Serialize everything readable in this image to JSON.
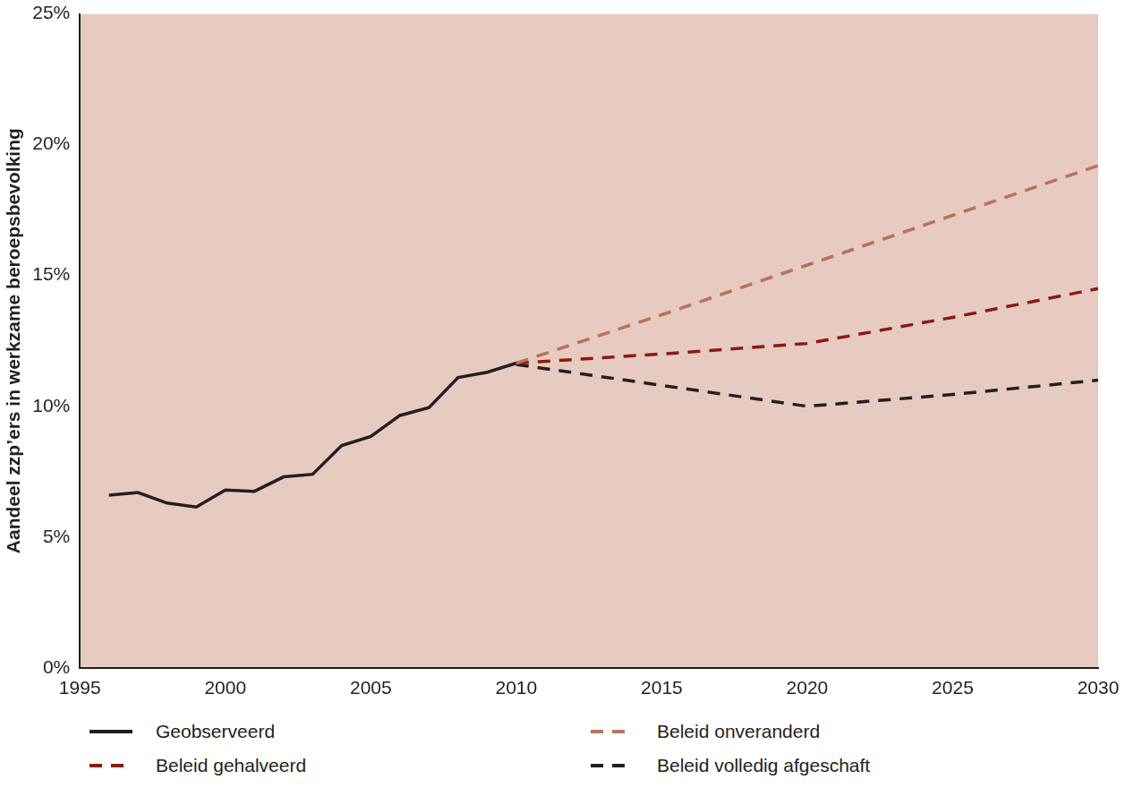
{
  "chart_data": {
    "type": "line",
    "y_label": "Aandeel zzp’ers in werkzame beroepsbevolking",
    "xlim": [
      1995,
      2030
    ],
    "xticks": [
      1995,
      2000,
      2005,
      2010,
      2015,
      2020,
      2025,
      2030
    ],
    "ylim": [
      0,
      25
    ],
    "yticks": [
      {
        "value": 0,
        "label": "0%"
      },
      {
        "value": 5,
        "label": "5%"
      },
      {
        "value": 10,
        "label": "10%"
      },
      {
        "value": 15,
        "label": "15%"
      },
      {
        "value": 20,
        "label": "20%"
      },
      {
        "value": 25,
        "label": "25%"
      }
    ],
    "grid": false,
    "legend": "bottom",
    "series": [
      {
        "name": "Geobserveerd",
        "color": "#231f20",
        "line_style": "solid",
        "x": [
          1996,
          1997,
          1998,
          1999,
          2000,
          2001,
          2002,
          2003,
          2004,
          2005,
          2006,
          2007,
          2008,
          2009,
          2010
        ],
        "values": [
          6.6,
          6.7,
          6.3,
          6.15,
          6.8,
          6.75,
          7.3,
          7.4,
          8.5,
          8.85,
          9.65,
          9.95,
          11.1,
          11.3,
          11.65
        ]
      },
      {
        "name": "Beleid onveranderd",
        "color": "#b87358",
        "line_style": "dashed",
        "x": [
          2010,
          2015,
          2020,
          2025,
          2030
        ],
        "values": [
          11.65,
          13.5,
          15.4,
          17.3,
          19.2
        ]
      },
      {
        "name": "Beleid gehalveerd",
        "color": "#8b1a0e",
        "line_style": "dashed",
        "x": [
          2010,
          2015,
          2020,
          2025,
          2030
        ],
        "values": [
          11.65,
          12.0,
          12.4,
          13.4,
          14.5
        ]
      },
      {
        "name": "Beleid volledig afgeschaft",
        "color": "#231f20",
        "line_style": "dashed",
        "x": [
          2010,
          2015,
          2020,
          2025,
          2030
        ],
        "values": [
          11.6,
          10.8,
          10.0,
          10.45,
          11.0
        ]
      }
    ]
  }
}
